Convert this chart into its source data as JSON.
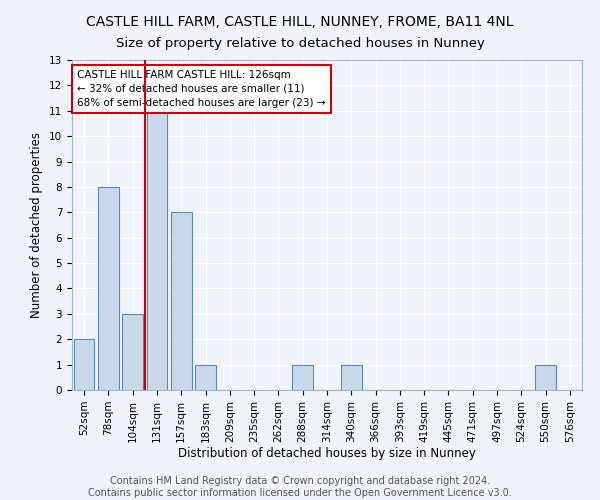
{
  "title": "CASTLE HILL FARM, CASTLE HILL, NUNNEY, FROME, BA11 4NL",
  "subtitle": "Size of property relative to detached houses in Nunney",
  "xlabel": "Distribution of detached houses by size in Nunney",
  "ylabel": "Number of detached properties",
  "footer_line1": "Contains HM Land Registry data © Crown copyright and database right 2024.",
  "footer_line2": "Contains public sector information licensed under the Open Government Licence v3.0.",
  "bin_labels": [
    "52sqm",
    "78sqm",
    "104sqm",
    "131sqm",
    "157sqm",
    "183sqm",
    "209sqm",
    "235sqm",
    "262sqm",
    "288sqm",
    "314sqm",
    "340sqm",
    "366sqm",
    "393sqm",
    "419sqm",
    "445sqm",
    "471sqm",
    "497sqm",
    "524sqm",
    "550sqm",
    "576sqm"
  ],
  "bar_heights": [
    2,
    8,
    3,
    11,
    7,
    1,
    0,
    0,
    0,
    1,
    0,
    1,
    0,
    0,
    0,
    0,
    0,
    0,
    0,
    1,
    0
  ],
  "bar_color": "#c9d9ea",
  "bar_edge_color": "#5a8ab5",
  "vline_color": "#cc0000",
  "annotation_text": "CASTLE HILL FARM CASTLE HILL: 126sqm\n← 32% of detached houses are smaller (11)\n68% of semi-detached houses are larger (23) →",
  "annotation_box_color": "white",
  "annotation_box_edge_color": "#cc0000",
  "ylim": [
    0,
    13
  ],
  "yticks": [
    0,
    1,
    2,
    3,
    4,
    5,
    6,
    7,
    8,
    9,
    10,
    11,
    12,
    13
  ],
  "background_color": "#f0f4fa",
  "grid_color": "white",
  "title_fontsize": 10,
  "subtitle_fontsize": 9.5,
  "axis_fontsize": 8.5,
  "tick_fontsize": 7.5,
  "footer_fontsize": 7,
  "annotation_fontsize": 7.5,
  "vline_bin_index": 3
}
